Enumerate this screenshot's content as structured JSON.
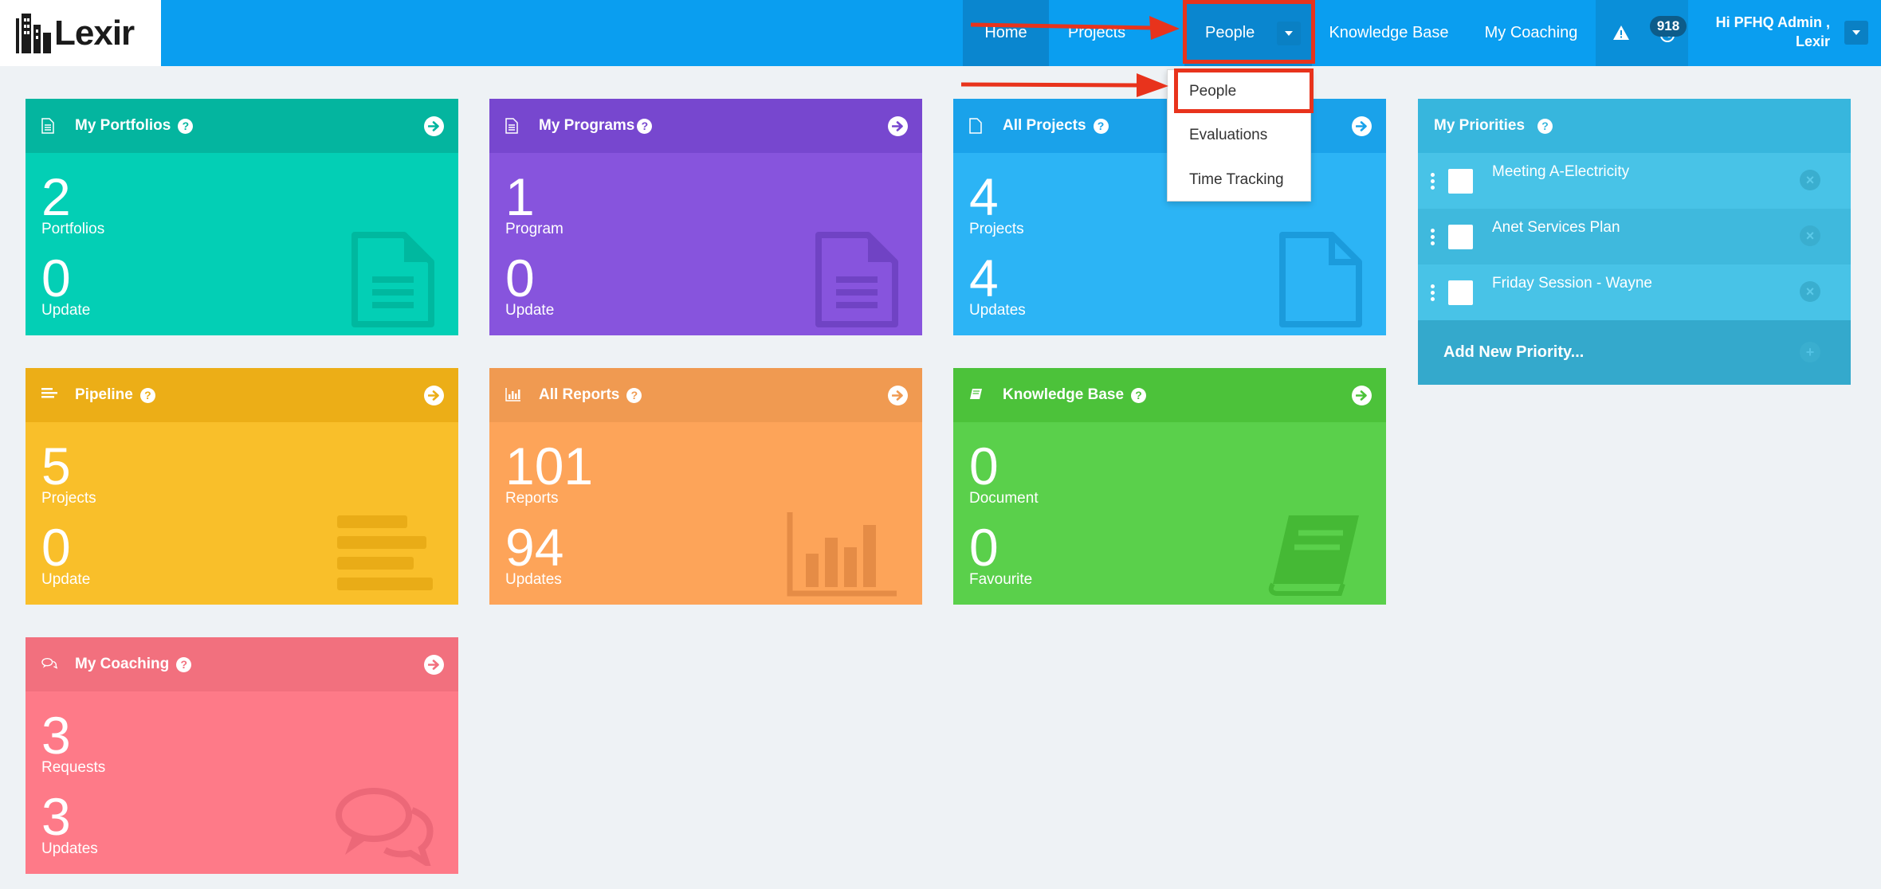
{
  "header": {
    "logo_text": "Lexir",
    "nav": {
      "home": "Home",
      "projects": "Projects",
      "people": "People",
      "knowledge_base": "Knowledge Base",
      "my_coaching": "My Coaching"
    },
    "notification_count": "918",
    "greeting_line1": "Hi PFHQ Admin ,",
    "greeting_line2": "Lexir"
  },
  "dropdown": {
    "items": [
      "People",
      "Evaluations",
      "Time Tracking"
    ]
  },
  "cards": {
    "portfolios": {
      "title": "My Portfolios",
      "n1": "2",
      "l1": "Portfolios",
      "n2": "0",
      "l2": "Update",
      "color": "#03cfb5",
      "head": "#04b59f"
    },
    "programs": {
      "title": "My Programs",
      "n1": "1",
      "l1": "Program",
      "n2": "0",
      "l2": "Update",
      "color": "#8754dd",
      "head": "#7747cf"
    },
    "projects": {
      "title": "All Projects",
      "n1": "4",
      "l1": "Projects",
      "n2": "4",
      "l2": "Updates",
      "color": "#2cb4f5",
      "head": "#1aa2ea"
    },
    "pipeline": {
      "title": "Pipeline",
      "n1": "5",
      "l1": "Projects",
      "n2": "0",
      "l2": "Update",
      "color": "#f9bf2a",
      "head": "#ecae17"
    },
    "reports": {
      "title": "All Reports",
      "n1": "101",
      "l1": "Reports",
      "n2": "94",
      "l2": "Updates",
      "color": "#fda459",
      "head": "#f09a51"
    },
    "knowledge": {
      "title": "Knowledge Base",
      "n1": "0",
      "l1": "Document",
      "n2": "0",
      "l2": "Favourite",
      "color": "#5ad04b",
      "head": "#4cc23a"
    },
    "coaching": {
      "title": "My Coaching",
      "n1": "3",
      "l1": "Requests",
      "n2": "3",
      "l2": "Updates",
      "color": "#fe7a88",
      "head": "#f2707e"
    }
  },
  "priorities": {
    "title": "My Priorities",
    "items": [
      "Meeting A-Electricity",
      "Anet Services Plan",
      "Friday Session - Wayne"
    ],
    "add_label": "Add New Priority..."
  },
  "icons": [
    "document-icon",
    "bars-icon",
    "chart-icon",
    "book-icon",
    "chat-icon",
    "arrow-right-icon",
    "help-icon",
    "alert-icon",
    "close-icon",
    "caret-down-icon"
  ]
}
